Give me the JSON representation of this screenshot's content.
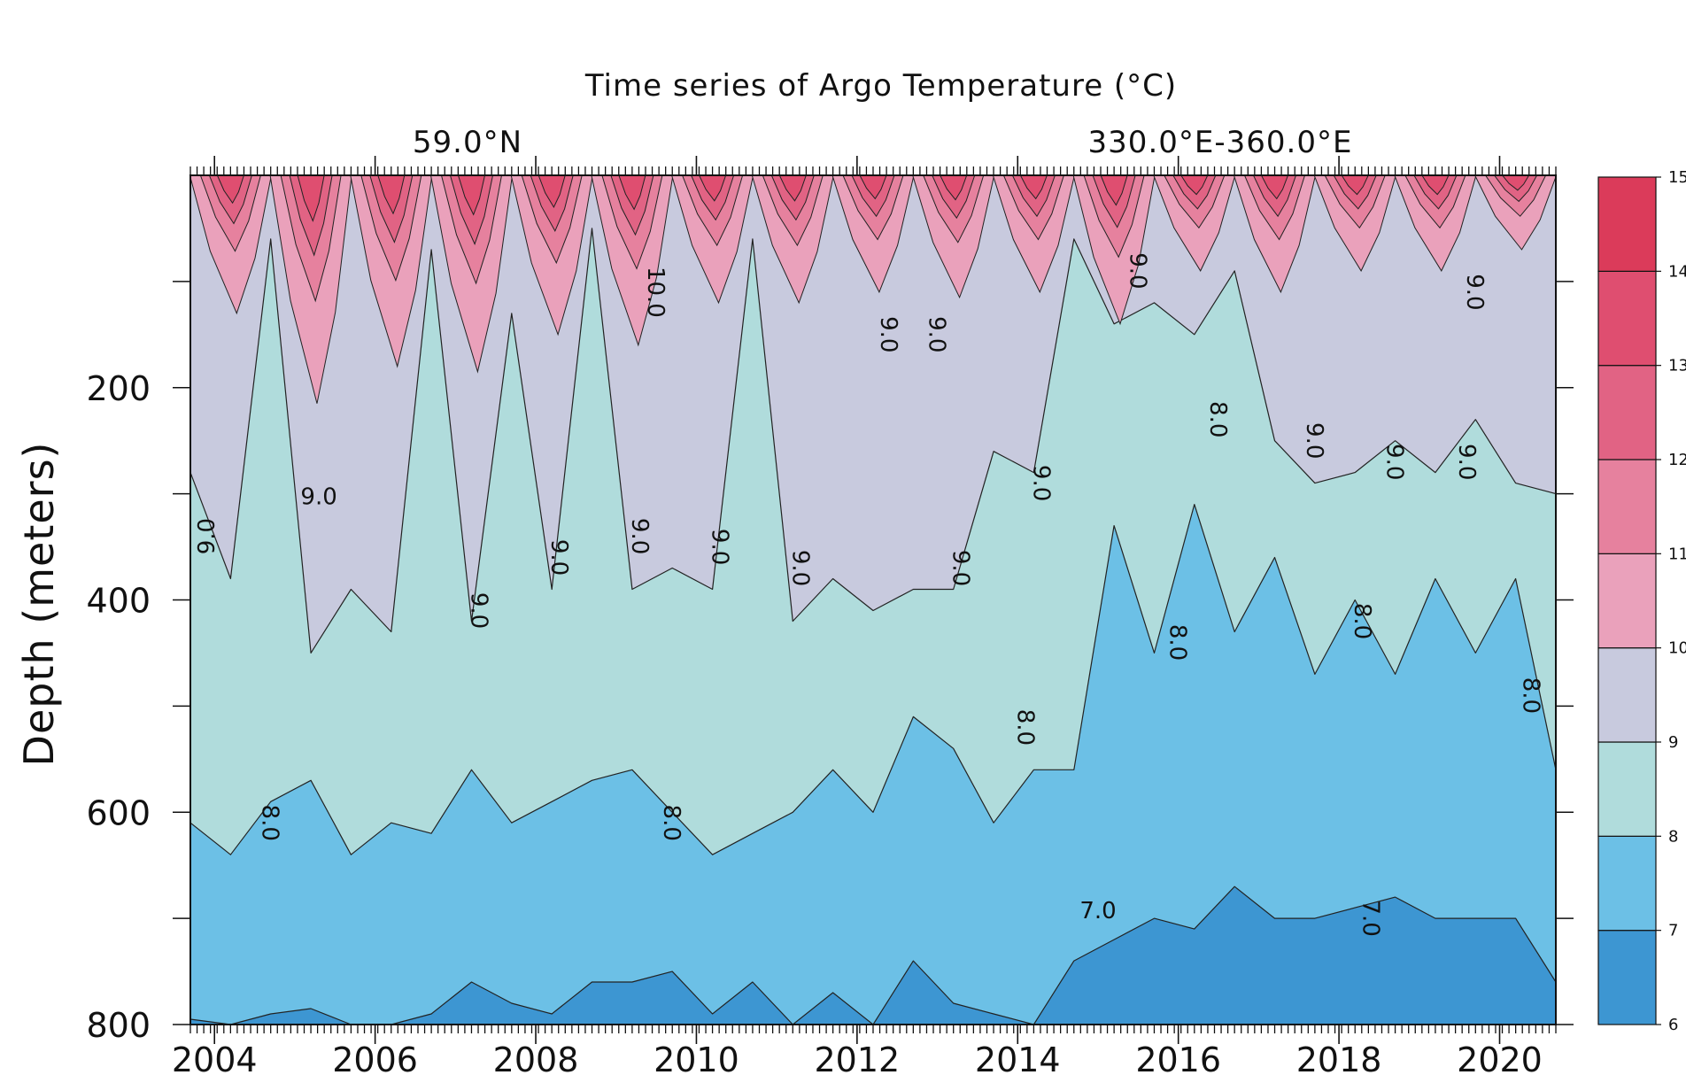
{
  "chart_data": {
    "type": "heatmap",
    "subtype": "filled-contour depth-time section",
    "title": "Time series of Argo Temperature (°C)",
    "subtitle_left": "59.0°N",
    "subtitle_right": "330.0°E-360.0°E",
    "xlabel": "",
    "ylabel": "Depth (meters)",
    "xlim": [
      2003.7,
      2020.7
    ],
    "ylim": [
      800,
      0
    ],
    "x_ticks": [
      "2004",
      "2006",
      "2008",
      "2010",
      "2012",
      "2014",
      "2016",
      "2018",
      "2020"
    ],
    "x_tick_values": [
      2004,
      2006,
      2008,
      2010,
      2012,
      2014,
      2016,
      2018,
      2020
    ],
    "y_ticks": [
      "200",
      "400",
      "600",
      "800"
    ],
    "y_tick_values": [
      200,
      400,
      600,
      800
    ],
    "colorbar": {
      "levels": [
        6,
        7,
        8,
        9,
        10,
        11,
        12,
        13,
        14,
        15
      ],
      "labels": [
        "6",
        "7",
        "8",
        "9",
        "10",
        "11",
        "12",
        "13",
        "14",
        "15"
      ],
      "colors": [
        "#3d96d2",
        "#6cc0e6",
        "#b0dcdc",
        "#c8cade",
        "#eaa1bb",
        "#e6819e",
        "#e16384",
        "#df4e70",
        "#db3b5a"
      ]
    },
    "isotherm_depths": {
      "years": [
        2003.7,
        2004.2,
        2004.7,
        2005.2,
        2005.7,
        2006.2,
        2006.7,
        2007.2,
        2007.7,
        2008.2,
        2008.7,
        2009.2,
        2009.7,
        2010.2,
        2010.7,
        2011.2,
        2011.7,
        2012.2,
        2012.7,
        2013.2,
        2013.7,
        2014.2,
        2014.7,
        2015.2,
        2015.7,
        2016.2,
        2016.7,
        2017.2,
        2017.7,
        2018.2,
        2018.7,
        2019.2,
        2019.7,
        2020.2,
        2020.7
      ],
      "t7_m": [
        795,
        800,
        790,
        785,
        800,
        800,
        790,
        760,
        780,
        790,
        760,
        760,
        750,
        790,
        760,
        800,
        770,
        800,
        740,
        780,
        790,
        800,
        740,
        720,
        700,
        710,
        670,
        700,
        700,
        690,
        680,
        700,
        700,
        700,
        760
      ],
      "t8_m": [
        610,
        640,
        590,
        570,
        640,
        610,
        620,
        560,
        610,
        590,
        570,
        560,
        600,
        640,
        620,
        600,
        560,
        600,
        510,
        540,
        610,
        560,
        560,
        330,
        450,
        310,
        430,
        360,
        470,
        400,
        470,
        380,
        450,
        380,
        560
      ],
      "t9_m": [
        280,
        380,
        60,
        450,
        390,
        430,
        70,
        420,
        130,
        390,
        50,
        390,
        370,
        390,
        60,
        420,
        380,
        410,
        390,
        390,
        260,
        280,
        60,
        140,
        120,
        150,
        90,
        250,
        290,
        280,
        250,
        280,
        230,
        290,
        300
      ]
    },
    "contour_labels": [
      "9.0",
      "10.0",
      "8.0",
      "7.0"
    ]
  }
}
